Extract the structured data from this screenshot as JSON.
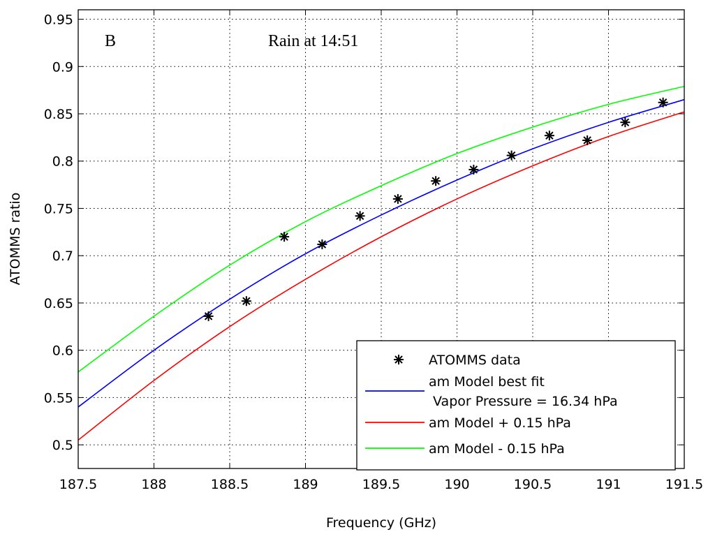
{
  "chart_data": {
    "type": "line",
    "title": "",
    "xlabel": "Frequency (GHz)",
    "ylabel": "ATOMMS ratio",
    "xlim": [
      187.5,
      191.5
    ],
    "ylim": [
      0.475,
      0.96
    ],
    "xticks": [
      187.5,
      188,
      188.5,
      189,
      189.5,
      190,
      190.5,
      191,
      191.5
    ],
    "xtick_labels": [
      "187.5",
      "188",
      "188.5",
      "189",
      "189.5",
      "190",
      "190.5",
      "191",
      "191.5"
    ],
    "yticks": [
      0.5,
      0.55,
      0.6,
      0.65,
      0.7,
      0.75,
      0.8,
      0.85,
      0.9,
      0.95
    ],
    "ytick_labels": [
      "0.5",
      "0.55",
      "0.6",
      "0.65",
      "0.7",
      "0.75",
      "0.8",
      "0.85",
      "0.9",
      "0.95"
    ],
    "grid": true,
    "legend_position": "bottom-right",
    "annotations": [
      {
        "text": "B",
        "position": "top-left"
      },
      {
        "text": "Rain at 14:51",
        "position": "top-center"
      }
    ],
    "series": [
      {
        "name": "ATOMMS data",
        "legend_label": [
          "ATOMMS data"
        ],
        "kind": "scatter",
        "marker": "star",
        "color": "#000000",
        "x": [
          188.36,
          188.61,
          188.86,
          189.11,
          189.36,
          189.61,
          189.86,
          190.11,
          190.36,
          190.61,
          190.86,
          191.11,
          191.36
        ],
        "y": [
          0.636,
          0.652,
          0.72,
          0.712,
          0.742,
          0.76,
          0.779,
          0.791,
          0.806,
          0.827,
          0.822,
          0.841,
          0.862
        ]
      },
      {
        "name": "am Model best fit Vapor Pressure = 16.34 hPa",
        "legend_label": [
          "am Model best fit",
          " Vapor Pressure = 16.34 hPa"
        ],
        "kind": "line",
        "color": "#0000ff",
        "x": [
          187.5,
          188.0,
          188.5,
          189.0,
          189.5,
          190.0,
          190.5,
          191.0,
          191.5
        ],
        "y": [
          0.54,
          0.6,
          0.654,
          0.702,
          0.743,
          0.78,
          0.813,
          0.841,
          0.865
        ]
      },
      {
        "name": "am Model + 0.15 hPa",
        "legend_label": [
          "am Model + 0.15 hPa"
        ],
        "kind": "line",
        "color": "#ff0000",
        "x": [
          187.5,
          188.0,
          188.5,
          189.0,
          189.5,
          190.0,
          190.5,
          191.0,
          191.5
        ],
        "y": [
          0.505,
          0.568,
          0.625,
          0.675,
          0.72,
          0.76,
          0.795,
          0.826,
          0.852
        ]
      },
      {
        "name": "am Model - 0.15 hPa",
        "legend_label": [
          "am Model - 0.15 hPa"
        ],
        "kind": "line",
        "color": "#00ff00",
        "x": [
          187.5,
          188.0,
          188.5,
          189.0,
          189.5,
          190.0,
          190.5,
          191.0,
          191.5
        ],
        "y": [
          0.577,
          0.636,
          0.69,
          0.736,
          0.774,
          0.808,
          0.836,
          0.86,
          0.879
        ]
      }
    ]
  }
}
